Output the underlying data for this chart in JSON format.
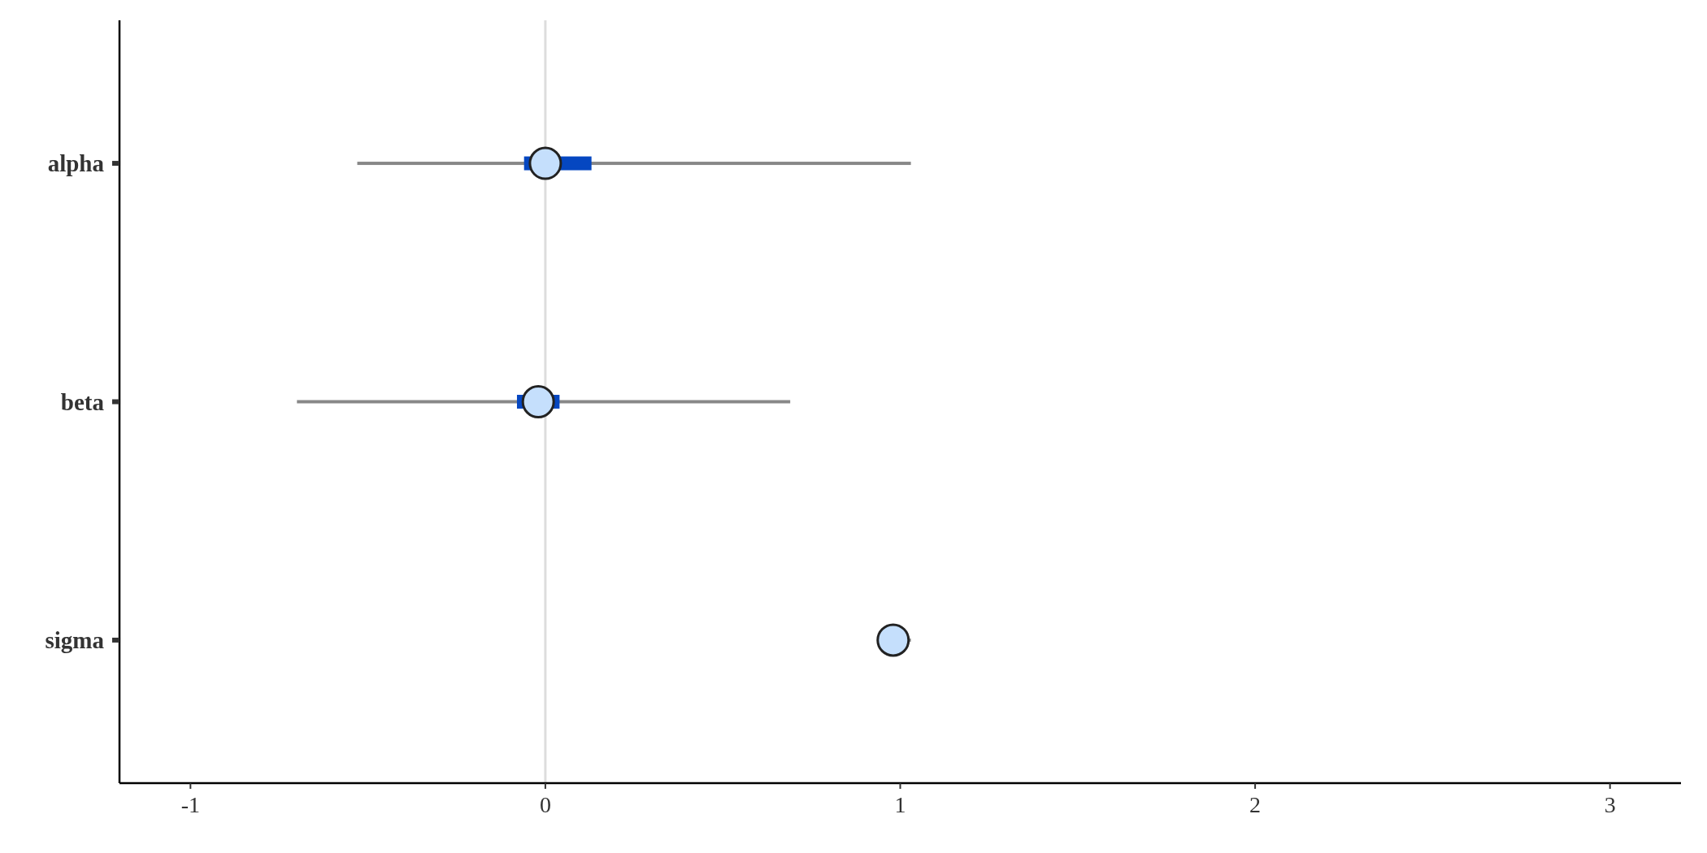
{
  "chart_data": {
    "type": "bar",
    "orientation": "horizontal",
    "categories": [
      "alpha",
      "beta",
      "sigma"
    ],
    "series": [
      {
        "color": "#888888",
        "base": [
          -0.53,
          -0.7,
          0.94
        ],
        "values": [
          1.56,
          1.39,
          0.09
        ]
      },
      {
        "color": "#0547c1",
        "base": [
          -0.06,
          -0.08,
          null
        ],
        "values": [
          0.19,
          0.12,
          null
        ]
      },
      {
        "type": "scatter",
        "color": "#c5dffc",
        "marker": "circle",
        "values": [
          0.0,
          -0.02,
          0.98
        ]
      }
    ],
    "xlim": [
      -1.2,
      3.2
    ],
    "xticks": [
      -1,
      0,
      1,
      2,
      3
    ],
    "grid": false,
    "ref_lines": [
      {
        "axis": "x",
        "value": 0,
        "color": "#dddddd"
      }
    ]
  }
}
